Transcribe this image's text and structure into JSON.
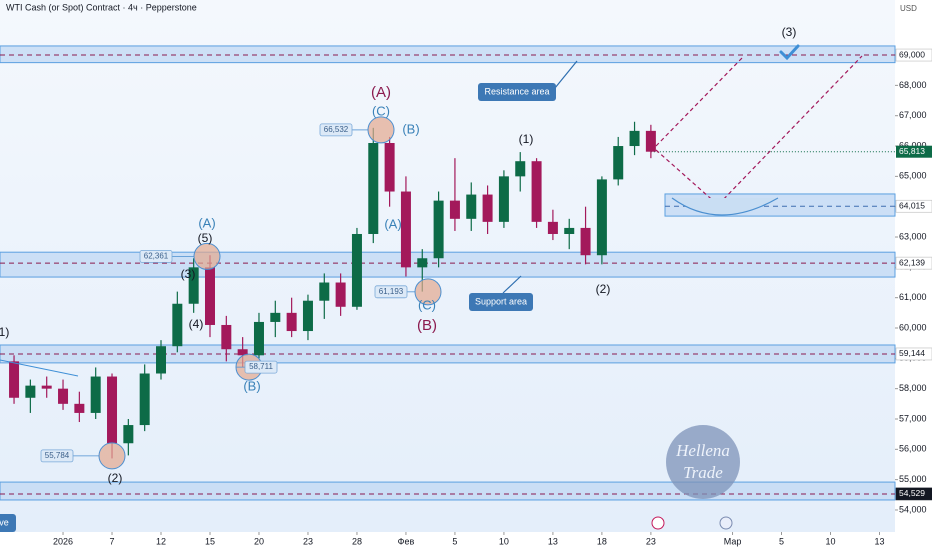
{
  "chart_data": {
    "type": "candlestick",
    "title": "WTI Cash (or Spot) Contract · 4ч · Pepperstone",
    "currency": "USD",
    "x": [
      -3,
      -2,
      -1,
      0,
      1,
      2,
      3,
      4,
      5,
      6,
      7,
      8,
      9,
      10,
      11,
      12,
      13,
      14,
      15,
      16,
      17,
      18,
      19,
      20,
      21,
      22,
      23,
      24,
      25,
      26,
      27,
      28,
      29,
      30,
      31,
      32,
      33,
      34,
      35,
      36
    ],
    "open": [
      58900,
      57700,
      58100,
      58000,
      57500,
      57200,
      58400,
      56200,
      56800,
      58500,
      59400,
      60800,
      62000,
      60100,
      59300,
      59100,
      60200,
      60500,
      59900,
      60900,
      61500,
      60700,
      63100,
      66100,
      64500,
      62000,
      62300,
      64200,
      63600,
      64400,
      63500,
      65000,
      65500,
      63500,
      63100,
      63300,
      62400,
      64900,
      66000,
      66500
    ],
    "high": [
      59100,
      58300,
      58400,
      58300,
      57900,
      58700,
      58500,
      57000,
      58800,
      59600,
      61200,
      62300,
      62400,
      60400,
      59700,
      60500,
      60900,
      61000,
      61100,
      61800,
      61800,
      63300,
      66600,
      66300,
      65000,
      62600,
      64500,
      65600,
      64800,
      64700,
      65200,
      65800,
      65600,
      63900,
      63600,
      64000,
      65000,
      66300,
      66800,
      66700
    ],
    "low": [
      57500,
      57200,
      57700,
      57300,
      56900,
      57000,
      55700,
      55800,
      56600,
      58300,
      59200,
      60500,
      59700,
      58900,
      58700,
      59000,
      59700,
      59700,
      59600,
      60300,
      60400,
      60600,
      62800,
      64000,
      61700,
      61200,
      62000,
      63200,
      63200,
      63100,
      63300,
      64500,
      63300,
      62900,
      62600,
      62100,
      62100,
      64700,
      65700,
      65600
    ],
    "close": [
      57700,
      58100,
      58000,
      57500,
      57200,
      58400,
      56200,
      56800,
      58500,
      59400,
      60800,
      62000,
      60100,
      59300,
      59100,
      60200,
      60500,
      59900,
      60900,
      61500,
      60700,
      63100,
      66100,
      64500,
      62000,
      62300,
      64200,
      63600,
      64400,
      63500,
      65000,
      65500,
      63500,
      63100,
      63300,
      62400,
      64900,
      66000,
      66500,
      65813
    ],
    "up_color": "#0d6b47",
    "down_color": "#a3195b",
    "last_label": "65,813",
    "xlim": [
      -3.86,
      50.95
    ],
    "xticks": [
      {
        "value": 0,
        "label": "2026"
      },
      {
        "value": 3,
        "label": "7"
      },
      {
        "value": 6,
        "label": "12"
      },
      {
        "value": 9,
        "label": "15"
      },
      {
        "value": 12,
        "label": "20"
      },
      {
        "value": 15,
        "label": "23"
      },
      {
        "value": 18,
        "label": "28"
      },
      {
        "value": 21,
        "label": "Фев"
      },
      {
        "value": 24,
        "label": "5"
      },
      {
        "value": 27,
        "label": "10"
      },
      {
        "value": 30,
        "label": "13"
      },
      {
        "value": 33,
        "label": "18"
      },
      {
        "value": 36,
        "label": "23"
      },
      {
        "value": 41,
        "label": "Мар"
      },
      {
        "value": 44,
        "label": "5"
      },
      {
        "value": 47,
        "label": "10"
      },
      {
        "value": 50,
        "label": "13"
      }
    ],
    "ylim": [
      53340,
      70815
    ],
    "yticks": [
      {
        "value": 54000,
        "label": "54,000"
      },
      {
        "value": 55000,
        "label": "55,000"
      },
      {
        "value": 56000,
        "label": "56,000"
      },
      {
        "value": 57000,
        "label": "57,000"
      },
      {
        "value": 58000,
        "label": "58,000"
      },
      {
        "value": 59000,
        "label": "59,000"
      },
      {
        "value": 60000,
        "label": "60,000"
      },
      {
        "value": 61000,
        "label": "61,000"
      },
      {
        "value": 62000,
        "label": "62,000"
      },
      {
        "value": 63000,
        "label": "63,000"
      },
      {
        "value": 64000,
        "label": "64,000"
      },
      {
        "value": 65000,
        "label": "65,000"
      },
      {
        "value": 66000,
        "label": "66,000"
      },
      {
        "value": 67000,
        "label": "67,000"
      },
      {
        "value": 68000,
        "label": "68,000"
      },
      {
        "value": 69000,
        "label": "69,000"
      }
    ],
    "levels": [
      {
        "value": 69000,
        "label": "69,000"
      },
      {
        "value": 64015,
        "label": "64,015"
      },
      {
        "value": 62139,
        "label": "62,139"
      },
      {
        "value": 59144,
        "label": "59,144"
      },
      {
        "value": 54529,
        "label": "54,529"
      }
    ],
    "zones": [
      [
        68750,
        69300
      ],
      [
        61680,
        62500
      ],
      [
        58850,
        59440
      ],
      [
        54330,
        54920
      ],
      [
        63690,
        64420
      ]
    ],
    "wave_labels": [
      "(1)",
      "(2)",
      "(3)",
      "(4)",
      "(5)",
      "(A)",
      "(B)",
      "(A)",
      "(C)",
      "(B)",
      "(A)",
      "(C)",
      "(B)",
      "(1)",
      "(2)",
      "(3)"
    ],
    "price_tags": [
      {
        "value": 66532,
        "label": "66,532"
      },
      {
        "value": 62361,
        "label": "62,361"
      },
      {
        "value": 61193,
        "label": "61,193"
      },
      {
        "value": 58711,
        "label": "58,711"
      },
      {
        "value": 55784,
        "label": "55,784"
      }
    ],
    "callouts": [
      "Resistance area",
      "Support area"
    ],
    "corner_tag": "ve",
    "watermark": [
      "Hellena",
      "Trade"
    ]
  }
}
